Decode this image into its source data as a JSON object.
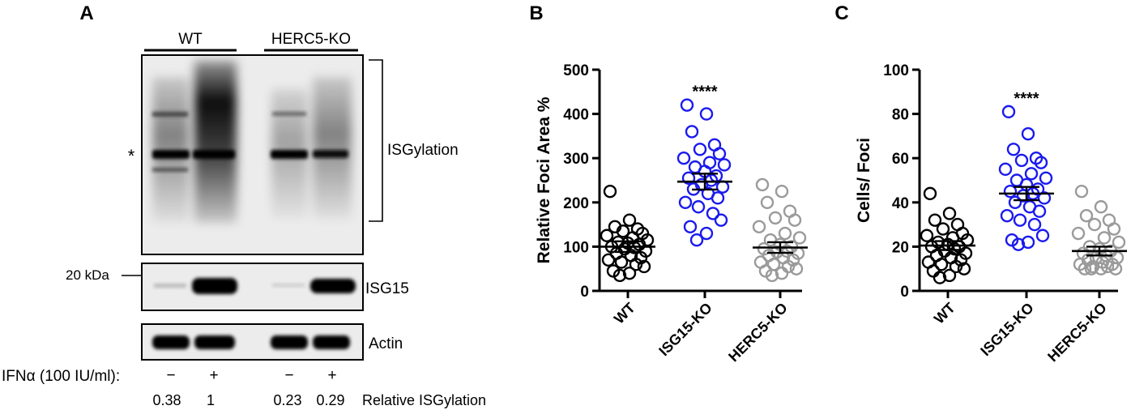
{
  "panels": {
    "a": "A",
    "b": "B",
    "c": "C"
  },
  "blot": {
    "group_wt": "WT",
    "group_ko": "HERC5-KO",
    "asterisk": "*",
    "isgylation_label": "ISGylation",
    "isg15_label": "ISG15",
    "actin_label": "Actin",
    "marker_label": "20 kDa",
    "treatment_label": "IFNα (100 IU/ml):",
    "treatments": [
      "−",
      "+",
      "−",
      "+"
    ],
    "relative_values": [
      "0.38",
      "1",
      "0.23",
      "0.29"
    ],
    "relative_label": "Relative ISGylation"
  },
  "colors": {
    "wt": "#000000",
    "isg15ko": "#1a1aee",
    "herc5ko": "#9a9a9a"
  },
  "chart_data": [
    {
      "type": "scatter",
      "title": "",
      "ylabel": "Relative Foci Area %",
      "ylim": [
        0,
        500
      ],
      "yticks": [
        0,
        100,
        200,
        300,
        400,
        500
      ],
      "ytick_labels": [
        "0",
        "100",
        "200",
        "300",
        "400",
        "500"
      ],
      "categories": [
        "WT",
        "ISG15-KO",
        "HERC5-KO"
      ],
      "significance": [
        "",
        "****",
        ""
      ],
      "series": [
        {
          "name": "WT",
          "mean": 100,
          "sem": 12,
          "values": [
            225,
            160,
            145,
            140,
            135,
            130,
            125,
            120,
            115,
            110,
            108,
            105,
            100,
            98,
            95,
            90,
            85,
            80,
            75,
            70,
            65,
            60,
            55,
            45,
            40,
            35
          ]
        },
        {
          "name": "ISG15-KO",
          "mean": 247,
          "sem": 18,
          "values": [
            420,
            400,
            360,
            330,
            320,
            310,
            300,
            290,
            285,
            280,
            270,
            260,
            255,
            250,
            240,
            235,
            230,
            220,
            210,
            200,
            190,
            175,
            160,
            145,
            130,
            115
          ]
        },
        {
          "name": "HERC5-KO",
          "mean": 98,
          "sem": 12,
          "values": [
            240,
            225,
            200,
            180,
            165,
            160,
            145,
            130,
            120,
            115,
            105,
            100,
            95,
            90,
            88,
            85,
            80,
            75,
            70,
            65,
            60,
            55,
            50,
            45,
            40,
            35
          ]
        }
      ]
    },
    {
      "type": "scatter",
      "title": "",
      "ylabel": "Cells/ Foci",
      "ylim": [
        0,
        100
      ],
      "yticks": [
        0,
        20,
        40,
        60,
        80,
        100
      ],
      "ytick_labels": [
        "0",
        "20",
        "40",
        "60",
        "80",
        "100"
      ],
      "categories": [
        "WT",
        "ISG15-KO",
        "HERC5-KO"
      ],
      "significance": [
        "",
        "****",
        ""
      ],
      "series": [
        {
          "name": "WT",
          "mean": 20.5,
          "sem": 2,
          "values": [
            44,
            35,
            32,
            30,
            28,
            26,
            25,
            24,
            23,
            22,
            21,
            20,
            20,
            19,
            18,
            17,
            16,
            15,
            14,
            13,
            12,
            11,
            10,
            9,
            7,
            6
          ]
        },
        {
          "name": "ISG15-KO",
          "mean": 44,
          "sem": 3,
          "values": [
            81,
            71,
            64,
            60,
            59,
            58,
            55,
            53,
            51,
            50,
            48,
            46,
            45,
            44,
            43,
            42,
            40,
            38,
            36,
            34,
            32,
            30,
            25,
            23,
            22,
            21
          ]
        },
        {
          "name": "HERC5-KO",
          "mean": 18,
          "sem": 2,
          "values": [
            45,
            38,
            34,
            32,
            30,
            28,
            26,
            24,
            22,
            20,
            19,
            18,
            17,
            16,
            15,
            15,
            14,
            13,
            12,
            12,
            11,
            11,
            10,
            10,
            10,
            10
          ]
        }
      ]
    }
  ]
}
